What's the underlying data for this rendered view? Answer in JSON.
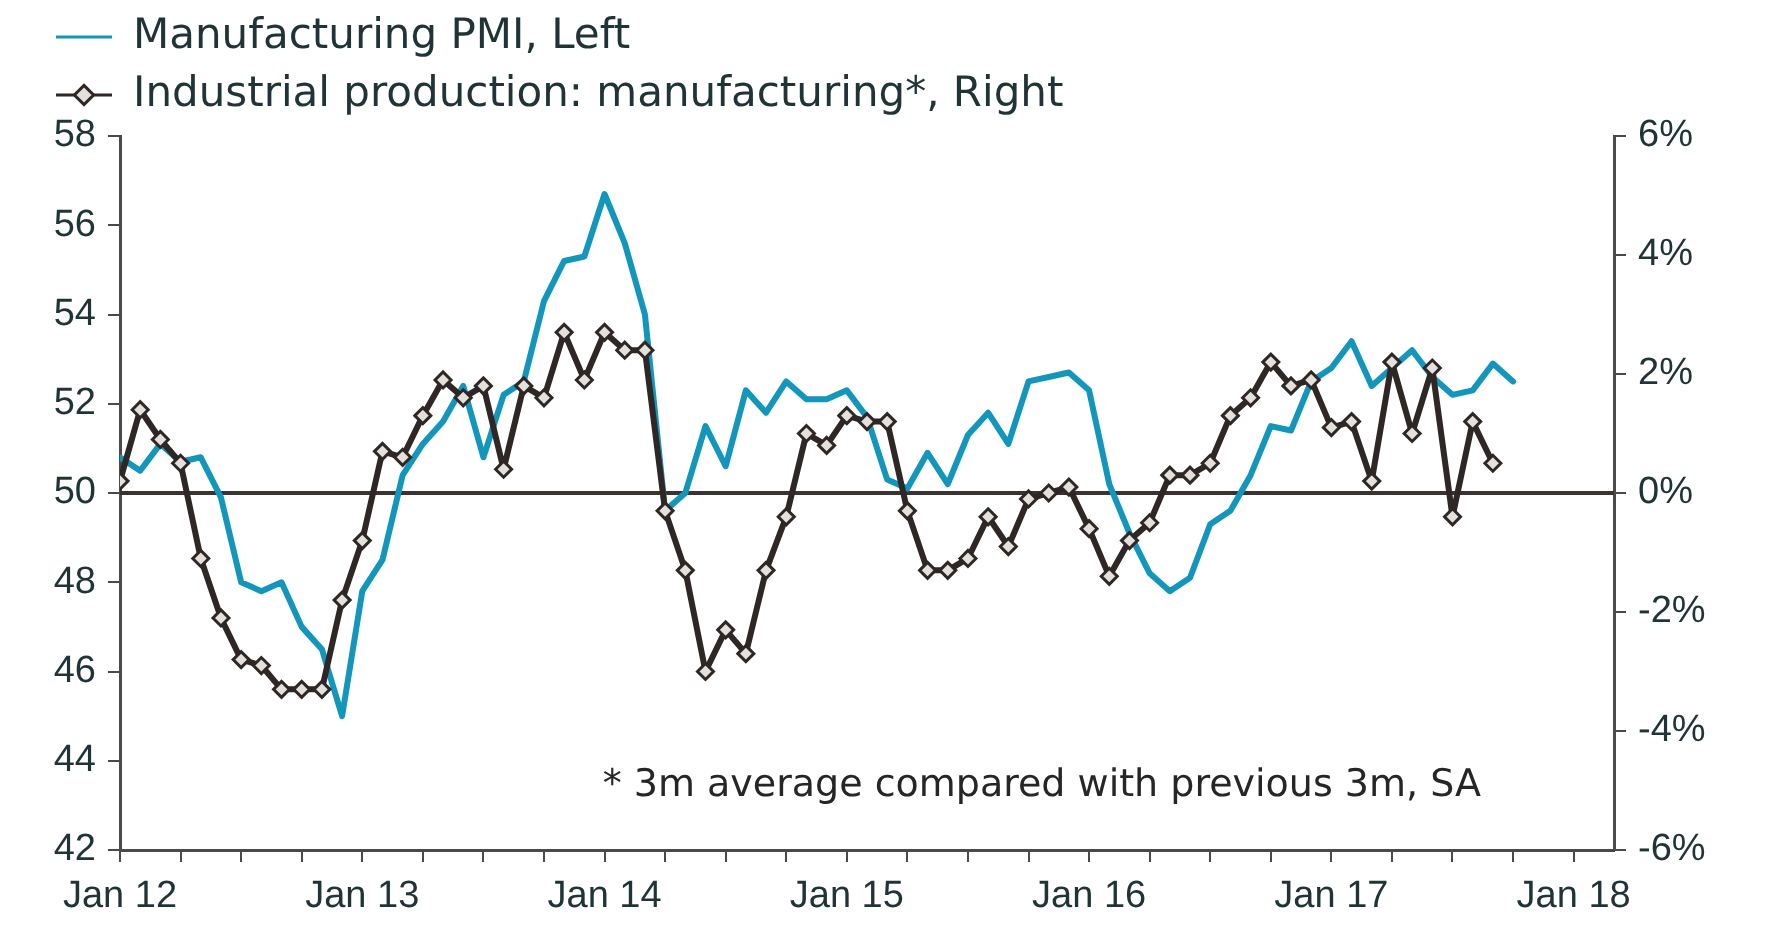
{
  "chart_data": {
    "type": "line",
    "x": [
      "2012-01",
      "2012-02",
      "2012-03",
      "2012-04",
      "2012-05",
      "2012-06",
      "2012-07",
      "2012-08",
      "2012-09",
      "2012-10",
      "2012-11",
      "2012-12",
      "2013-01",
      "2013-02",
      "2013-03",
      "2013-04",
      "2013-05",
      "2013-06",
      "2013-07",
      "2013-08",
      "2013-09",
      "2013-10",
      "2013-11",
      "2013-12",
      "2014-01",
      "2014-02",
      "2014-03",
      "2014-04",
      "2014-05",
      "2014-06",
      "2014-07",
      "2014-08",
      "2014-09",
      "2014-10",
      "2014-11",
      "2014-12",
      "2015-01",
      "2015-02",
      "2015-03",
      "2015-04",
      "2015-05",
      "2015-06",
      "2015-07",
      "2015-08",
      "2015-09",
      "2015-10",
      "2015-11",
      "2015-12",
      "2016-01",
      "2016-02",
      "2016-03",
      "2016-04",
      "2016-05",
      "2016-06",
      "2016-07",
      "2016-08",
      "2016-09",
      "2016-10",
      "2016-11",
      "2016-12",
      "2017-01",
      "2017-02",
      "2017-03",
      "2017-04",
      "2017-05",
      "2017-06",
      "2017-07",
      "2017-08",
      "2017-09",
      "2017-10"
    ],
    "series": [
      {
        "name": "Manufacturing PMI, Left",
        "color": "#1396bb",
        "marker": "none",
        "values": [
          50.8,
          50.5,
          51.1,
          50.7,
          50.8,
          49.9,
          48.0,
          47.8,
          48.0,
          47.0,
          46.5,
          45.0,
          47.8,
          48.5,
          50.4,
          51.1,
          51.6,
          52.4,
          50.8,
          52.2,
          52.5,
          54.3,
          55.2,
          55.3,
          56.7,
          55.6,
          54.0,
          49.6,
          50.0,
          51.5,
          50.6,
          52.3,
          51.8,
          52.5,
          52.1,
          52.1,
          52.3,
          51.7,
          50.3,
          50.1,
          50.9,
          50.2,
          51.3,
          51.8,
          51.1,
          52.5,
          52.6,
          52.7,
          52.3,
          50.2,
          49.1,
          48.2,
          47.8,
          48.1,
          49.3,
          49.6,
          50.4,
          51.5,
          51.4,
          52.5,
          52.8,
          53.4,
          52.4,
          52.8,
          53.2,
          52.6,
          52.2,
          52.3,
          52.9,
          52.5
        ]
      },
      {
        "name": "Industrial production: manufacturing*, Right",
        "color": "#2e2725",
        "marker": "diamond",
        "axis": "y2",
        "values": [
          0.2,
          1.4,
          0.9,
          0.5,
          -1.1,
          -2.1,
          -2.8,
          -2.9,
          -3.3,
          -3.3,
          -3.3,
          -1.8,
          -0.8,
          0.7,
          0.6,
          1.3,
          1.9,
          1.6,
          1.8,
          0.4,
          1.8,
          1.6,
          2.7,
          1.9,
          2.7,
          2.4,
          2.4,
          -0.3,
          -1.3,
          -3.0,
          -2.3,
          -2.7,
          -1.3,
          -0.4,
          1.0,
          0.8,
          1.3,
          1.2,
          1.2,
          -0.3,
          -1.3,
          -1.3,
          -1.1,
          -0.4,
          -0.9,
          -0.1,
          0.0,
          0.1,
          -0.6,
          -1.4,
          -0.8,
          -0.5,
          0.3,
          0.3,
          0.5,
          1.3,
          1.6,
          2.2,
          1.8,
          1.9,
          1.1,
          1.2,
          0.2,
          2.2,
          1.0,
          2.1,
          -0.4,
          1.2,
          0.5,
          null
        ]
      }
    ],
    "xlim": [
      "2012-01",
      "2018-03"
    ],
    "xticks": [
      {
        "value": "2012-01",
        "label": "Jan 12"
      },
      {
        "value": "2012-04",
        "label": null
      },
      {
        "value": "2012-07",
        "label": null
      },
      {
        "value": "2012-10",
        "label": null
      },
      {
        "value": "2013-01",
        "label": "Jan 13"
      },
      {
        "value": "2013-04",
        "label": null
      },
      {
        "value": "2013-07",
        "label": null
      },
      {
        "value": "2013-10",
        "label": null
      },
      {
        "value": "2014-01",
        "label": "Jan 14"
      },
      {
        "value": "2014-04",
        "label": null
      },
      {
        "value": "2014-07",
        "label": null
      },
      {
        "value": "2014-10",
        "label": null
      },
      {
        "value": "2015-01",
        "label": "Jan 15"
      },
      {
        "value": "2015-04",
        "label": null
      },
      {
        "value": "2015-07",
        "label": null
      },
      {
        "value": "2015-10",
        "label": null
      },
      {
        "value": "2016-01",
        "label": "Jan 16"
      },
      {
        "value": "2016-04",
        "label": null
      },
      {
        "value": "2016-07",
        "label": null
      },
      {
        "value": "2016-10",
        "label": null
      },
      {
        "value": "2017-01",
        "label": "Jan 17"
      },
      {
        "value": "2017-04",
        "label": null
      },
      {
        "value": "2017-07",
        "label": null
      },
      {
        "value": "2017-10",
        "label": null
      },
      {
        "value": "2018-01",
        "label": "Jan 18"
      }
    ],
    "ylim": [
      42,
      58
    ],
    "yticks": [
      42,
      44,
      46,
      48,
      50,
      52,
      54,
      56,
      58
    ],
    "y2lim": [
      -6,
      6
    ],
    "y2ticks": [
      {
        "value": -6,
        "label": "-6%"
      },
      {
        "value": -4,
        "label": "-4%"
      },
      {
        "value": -2,
        "label": "-2%"
      },
      {
        "value": 0,
        "label": "0%"
      },
      {
        "value": 2,
        "label": "2%"
      },
      {
        "value": 4,
        "label": "4%"
      },
      {
        "value": 6,
        "label": "6%"
      }
    ],
    "ref_lines": [
      {
        "axis": "y2",
        "value": 0,
        "color": "#3b3331"
      }
    ],
    "annotations": [
      "* 3m average compared with previous 3m, SA"
    ],
    "legend": "top left",
    "grid": false,
    "line_style": "solid"
  }
}
